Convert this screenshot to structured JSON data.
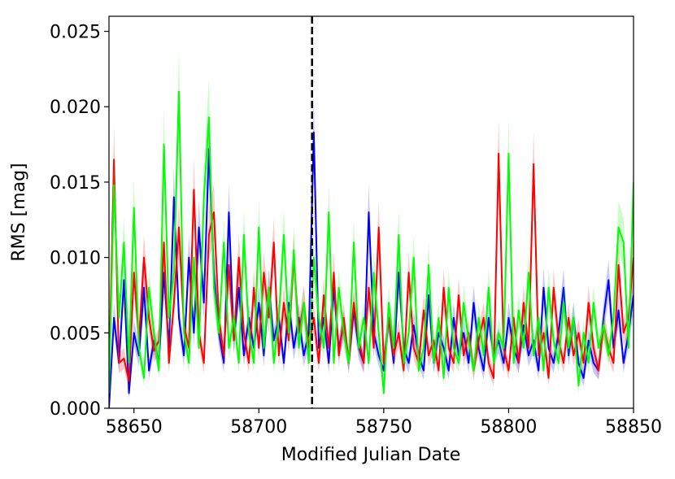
{
  "chart_data": {
    "type": "line",
    "title": "",
    "xlabel": "Modified Julian Date",
    "ylabel": "RMS [mag]",
    "xlim": [
      58640,
      58850
    ],
    "ylim": [
      0,
      0.026
    ],
    "xticks": [
      58650,
      58700,
      58750,
      58800,
      58850
    ],
    "xtick_labels": [
      "58650",
      "58700",
      "58750",
      "58800",
      "58850"
    ],
    "yticks": [
      0,
      0.005,
      0.01,
      0.015,
      0.02,
      0.025
    ],
    "ytick_labels": [
      "0.000",
      "0.005",
      "0.010",
      "0.015",
      "0.020",
      "0.025"
    ],
    "grid": false,
    "vline": {
      "x": 58721.3,
      "style": "dashed",
      "color": "#000000"
    },
    "x_start": 58640,
    "x_step": 2,
    "series": [
      {
        "name": "blue",
        "color": "#0000ff",
        "values": [
          0.0,
          0.006,
          0.003,
          0.0085,
          0.001,
          0.005,
          0.0035,
          0.008,
          0.0025,
          0.0045,
          0.003,
          0.009,
          0.004,
          0.014,
          0.006,
          0.0035,
          0.01,
          0.005,
          0.012,
          0.007,
          0.0172,
          0.009,
          0.005,
          0.003,
          0.013,
          0.0045,
          0.008,
          0.0035,
          0.006,
          0.004,
          0.007,
          0.0035,
          0.008,
          0.0045,
          0.006,
          0.003,
          0.007,
          0.004,
          0.006,
          0.0035,
          0.005,
          0.0183,
          0.004,
          0.006,
          0.003,
          0.008,
          0.004,
          0.0055,
          0.003,
          0.0065,
          0.004,
          0.003,
          0.013,
          0.005,
          0.0035,
          0.0025,
          0.006,
          0.003,
          0.009,
          0.004,
          0.003,
          0.0055,
          0.0035,
          0.0025,
          0.0075,
          0.003,
          0.005,
          0.004,
          0.0025,
          0.006,
          0.0035,
          0.005,
          0.003,
          0.007,
          0.004,
          0.0025,
          0.006,
          0.0035,
          0.0045,
          0.003,
          0.006,
          0.004,
          0.003,
          0.0055,
          0.0035,
          0.0045,
          0.0025,
          0.008,
          0.004,
          0.003,
          0.005,
          0.008,
          0.0035,
          0.006,
          0.003,
          0.002,
          0.0045,
          0.003,
          0.0025,
          0.006,
          0.0085,
          0.004,
          0.0065,
          0.003,
          0.005,
          0.0075
        ]
      },
      {
        "name": "red",
        "color": "#ff0000",
        "values": [
          0.002,
          0.0165,
          0.003,
          0.0033,
          0.0018,
          0.009,
          0.0045,
          0.01,
          0.006,
          0.0038,
          0.0045,
          0.011,
          0.003,
          0.007,
          0.012,
          0.0055,
          0.004,
          0.0145,
          0.005,
          0.003,
          0.0115,
          0.013,
          0.006,
          0.0035,
          0.0095,
          0.0045,
          0.01,
          0.005,
          0.003,
          0.008,
          0.004,
          0.009,
          0.006,
          0.011,
          0.0035,
          0.007,
          0.0045,
          0.01,
          0.005,
          0.007,
          0.004,
          0.006,
          0.003,
          0.0075,
          0.004,
          0.009,
          0.0035,
          0.006,
          0.003,
          0.007,
          0.0045,
          0.003,
          0.008,
          0.004,
          0.012,
          0.003,
          0.006,
          0.0035,
          0.005,
          0.0025,
          0.009,
          0.004,
          0.003,
          0.0065,
          0.0035,
          0.0045,
          0.0025,
          0.008,
          0.004,
          0.003,
          0.0075,
          0.0035,
          0.005,
          0.0025,
          0.0045,
          0.006,
          0.003,
          0.002,
          0.0169,
          0.004,
          0.0025,
          0.006,
          0.003,
          0.007,
          0.004,
          0.0162,
          0.0035,
          0.005,
          0.002,
          0.008,
          0.0045,
          0.003,
          0.006,
          0.0035,
          0.005,
          0.003,
          0.007,
          0.004,
          0.0025,
          0.0055,
          0.004,
          0.003,
          0.0095,
          0.005,
          0.006,
          0.01
        ]
      },
      {
        "name": "green",
        "color": "#00ff00",
        "values": [
          0.001,
          0.0148,
          0.006,
          0.011,
          0.003,
          0.0133,
          0.004,
          0.002,
          0.008,
          0.005,
          0.0025,
          0.0175,
          0.006,
          0.009,
          0.021,
          0.005,
          0.003,
          0.01,
          0.004,
          0.014,
          0.0193,
          0.008,
          0.005,
          0.011,
          0.004,
          0.006,
          0.003,
          0.0115,
          0.005,
          0.003,
          0.012,
          0.004,
          0.008,
          0.003,
          0.006,
          0.0115,
          0.005,
          0.0105,
          0.004,
          0.007,
          0.003,
          0.01,
          0.006,
          0.004,
          0.013,
          0.003,
          0.008,
          0.005,
          0.003,
          0.011,
          0.004,
          0.006,
          0.003,
          0.009,
          0.005,
          0.001,
          0.007,
          0.004,
          0.0115,
          0.003,
          0.005,
          0.01,
          0.0025,
          0.004,
          0.0095,
          0.003,
          0.006,
          0.002,
          0.008,
          0.004,
          0.003,
          0.007,
          0.0045,
          0.0025,
          0.006,
          0.0035,
          0.008,
          0.003,
          0.005,
          0.004,
          0.0169,
          0.003,
          0.0065,
          0.004,
          0.009,
          0.0035,
          0.006,
          0.0025,
          0.008,
          0.0045,
          0.003,
          0.007,
          0.004,
          0.006,
          0.0015,
          0.005,
          0.003,
          0.007,
          0.004,
          0.0055,
          0.0035,
          0.006,
          0.012,
          0.011,
          0.004,
          0.015
        ]
      }
    ]
  }
}
